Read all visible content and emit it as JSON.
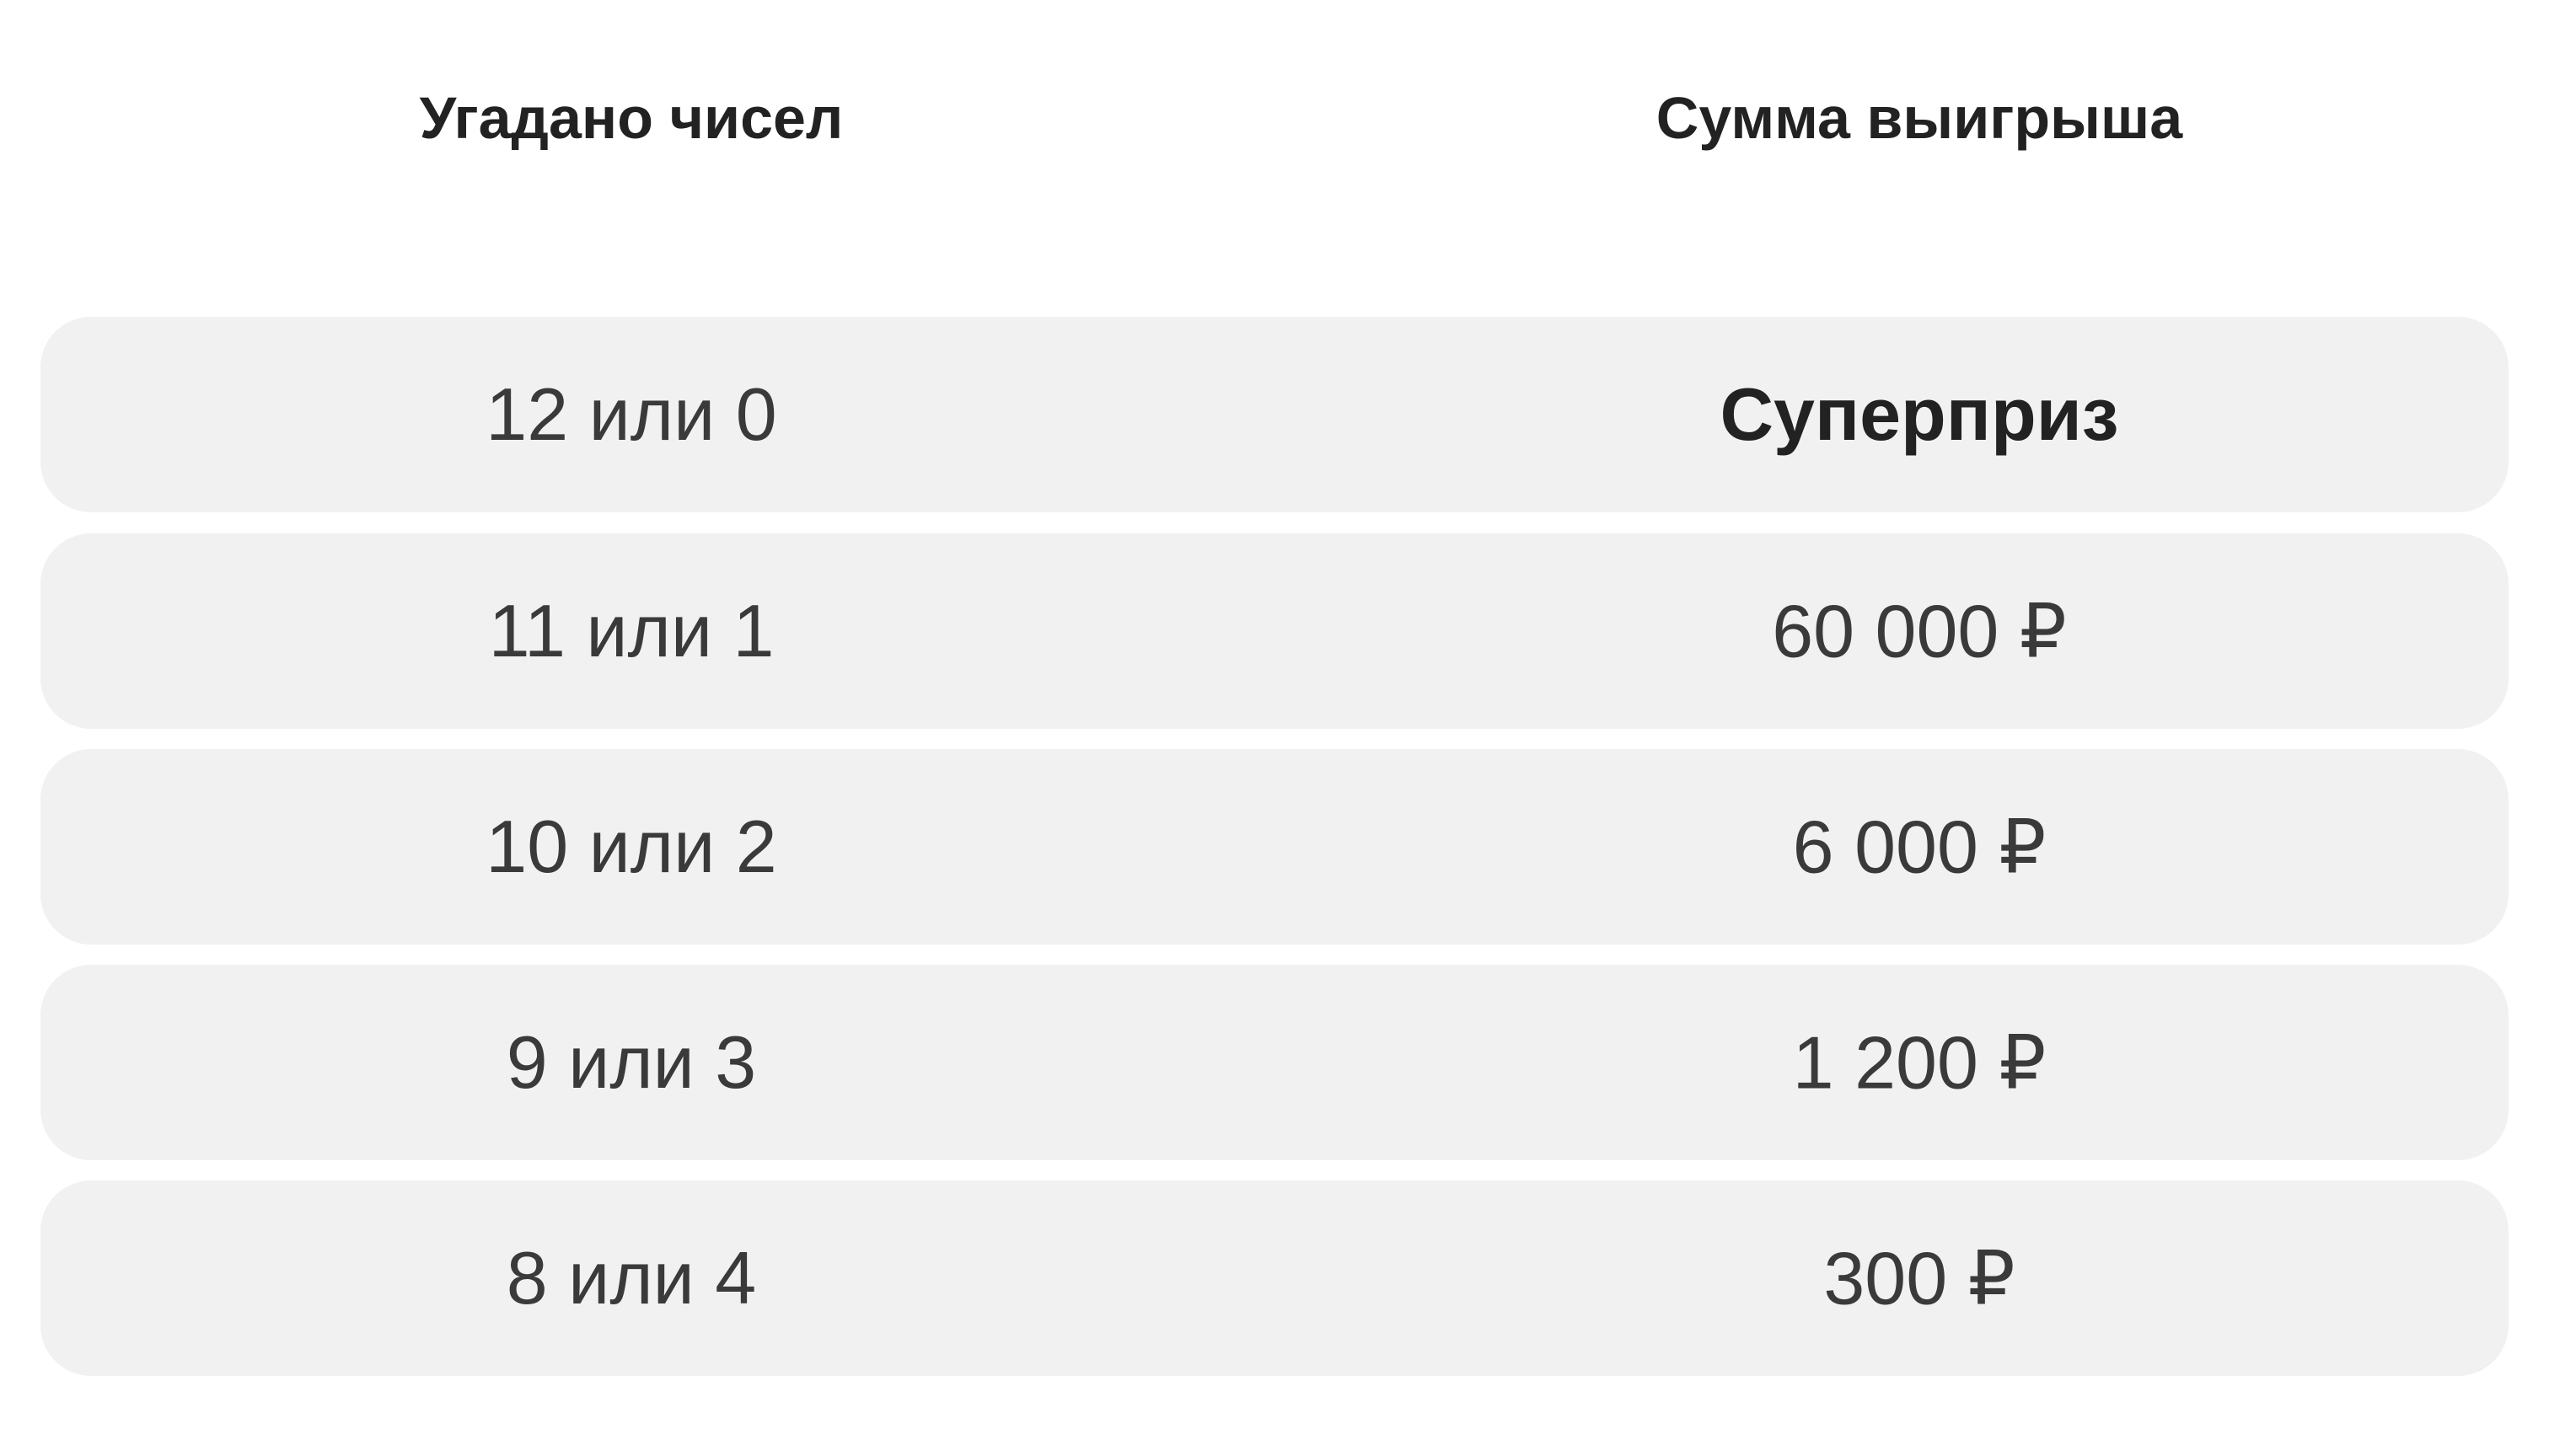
{
  "table": {
    "headers": [
      "Угадано чисел",
      "Сумма выигрыша"
    ],
    "rows": [
      {
        "matched": "12 или 0",
        "prize": "Суперприз",
        "highlight": true
      },
      {
        "matched": "11 или 1",
        "prize": "60 000 ₽"
      },
      {
        "matched": "10 или 2",
        "prize": "6 000 ₽"
      },
      {
        "matched": "9 или 3",
        "prize": "1 200 ₽"
      },
      {
        "matched": "8 или 4",
        "prize": "300 ₽"
      }
    ]
  },
  "colors": {
    "row_background": "#f1f1f1",
    "text": "#3a3a3a",
    "header_text": "#222222"
  }
}
